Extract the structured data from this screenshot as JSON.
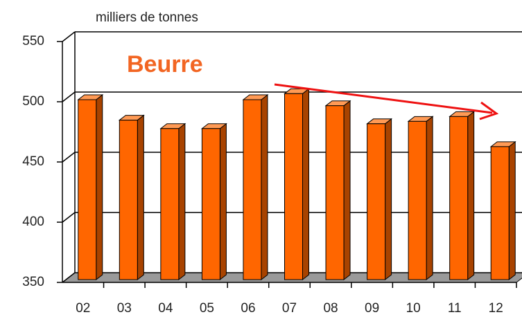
{
  "chart_data": {
    "type": "bar",
    "y_label": "milliers de tonnes",
    "annotation": "Beurre",
    "categories": [
      "02",
      "03",
      "04",
      "05",
      "06",
      "07",
      "08",
      "09",
      "10",
      "11",
      "12"
    ],
    "values": [
      500,
      483,
      476,
      476,
      500,
      505,
      495,
      480,
      482,
      486,
      461
    ],
    "color": "#ff6600",
    "annotation_color": "#f26522",
    "arrow_color": "#ee1111",
    "ylim": [
      350,
      550
    ],
    "yticks": [
      350,
      400,
      450,
      500,
      550
    ],
    "grid": true
  }
}
